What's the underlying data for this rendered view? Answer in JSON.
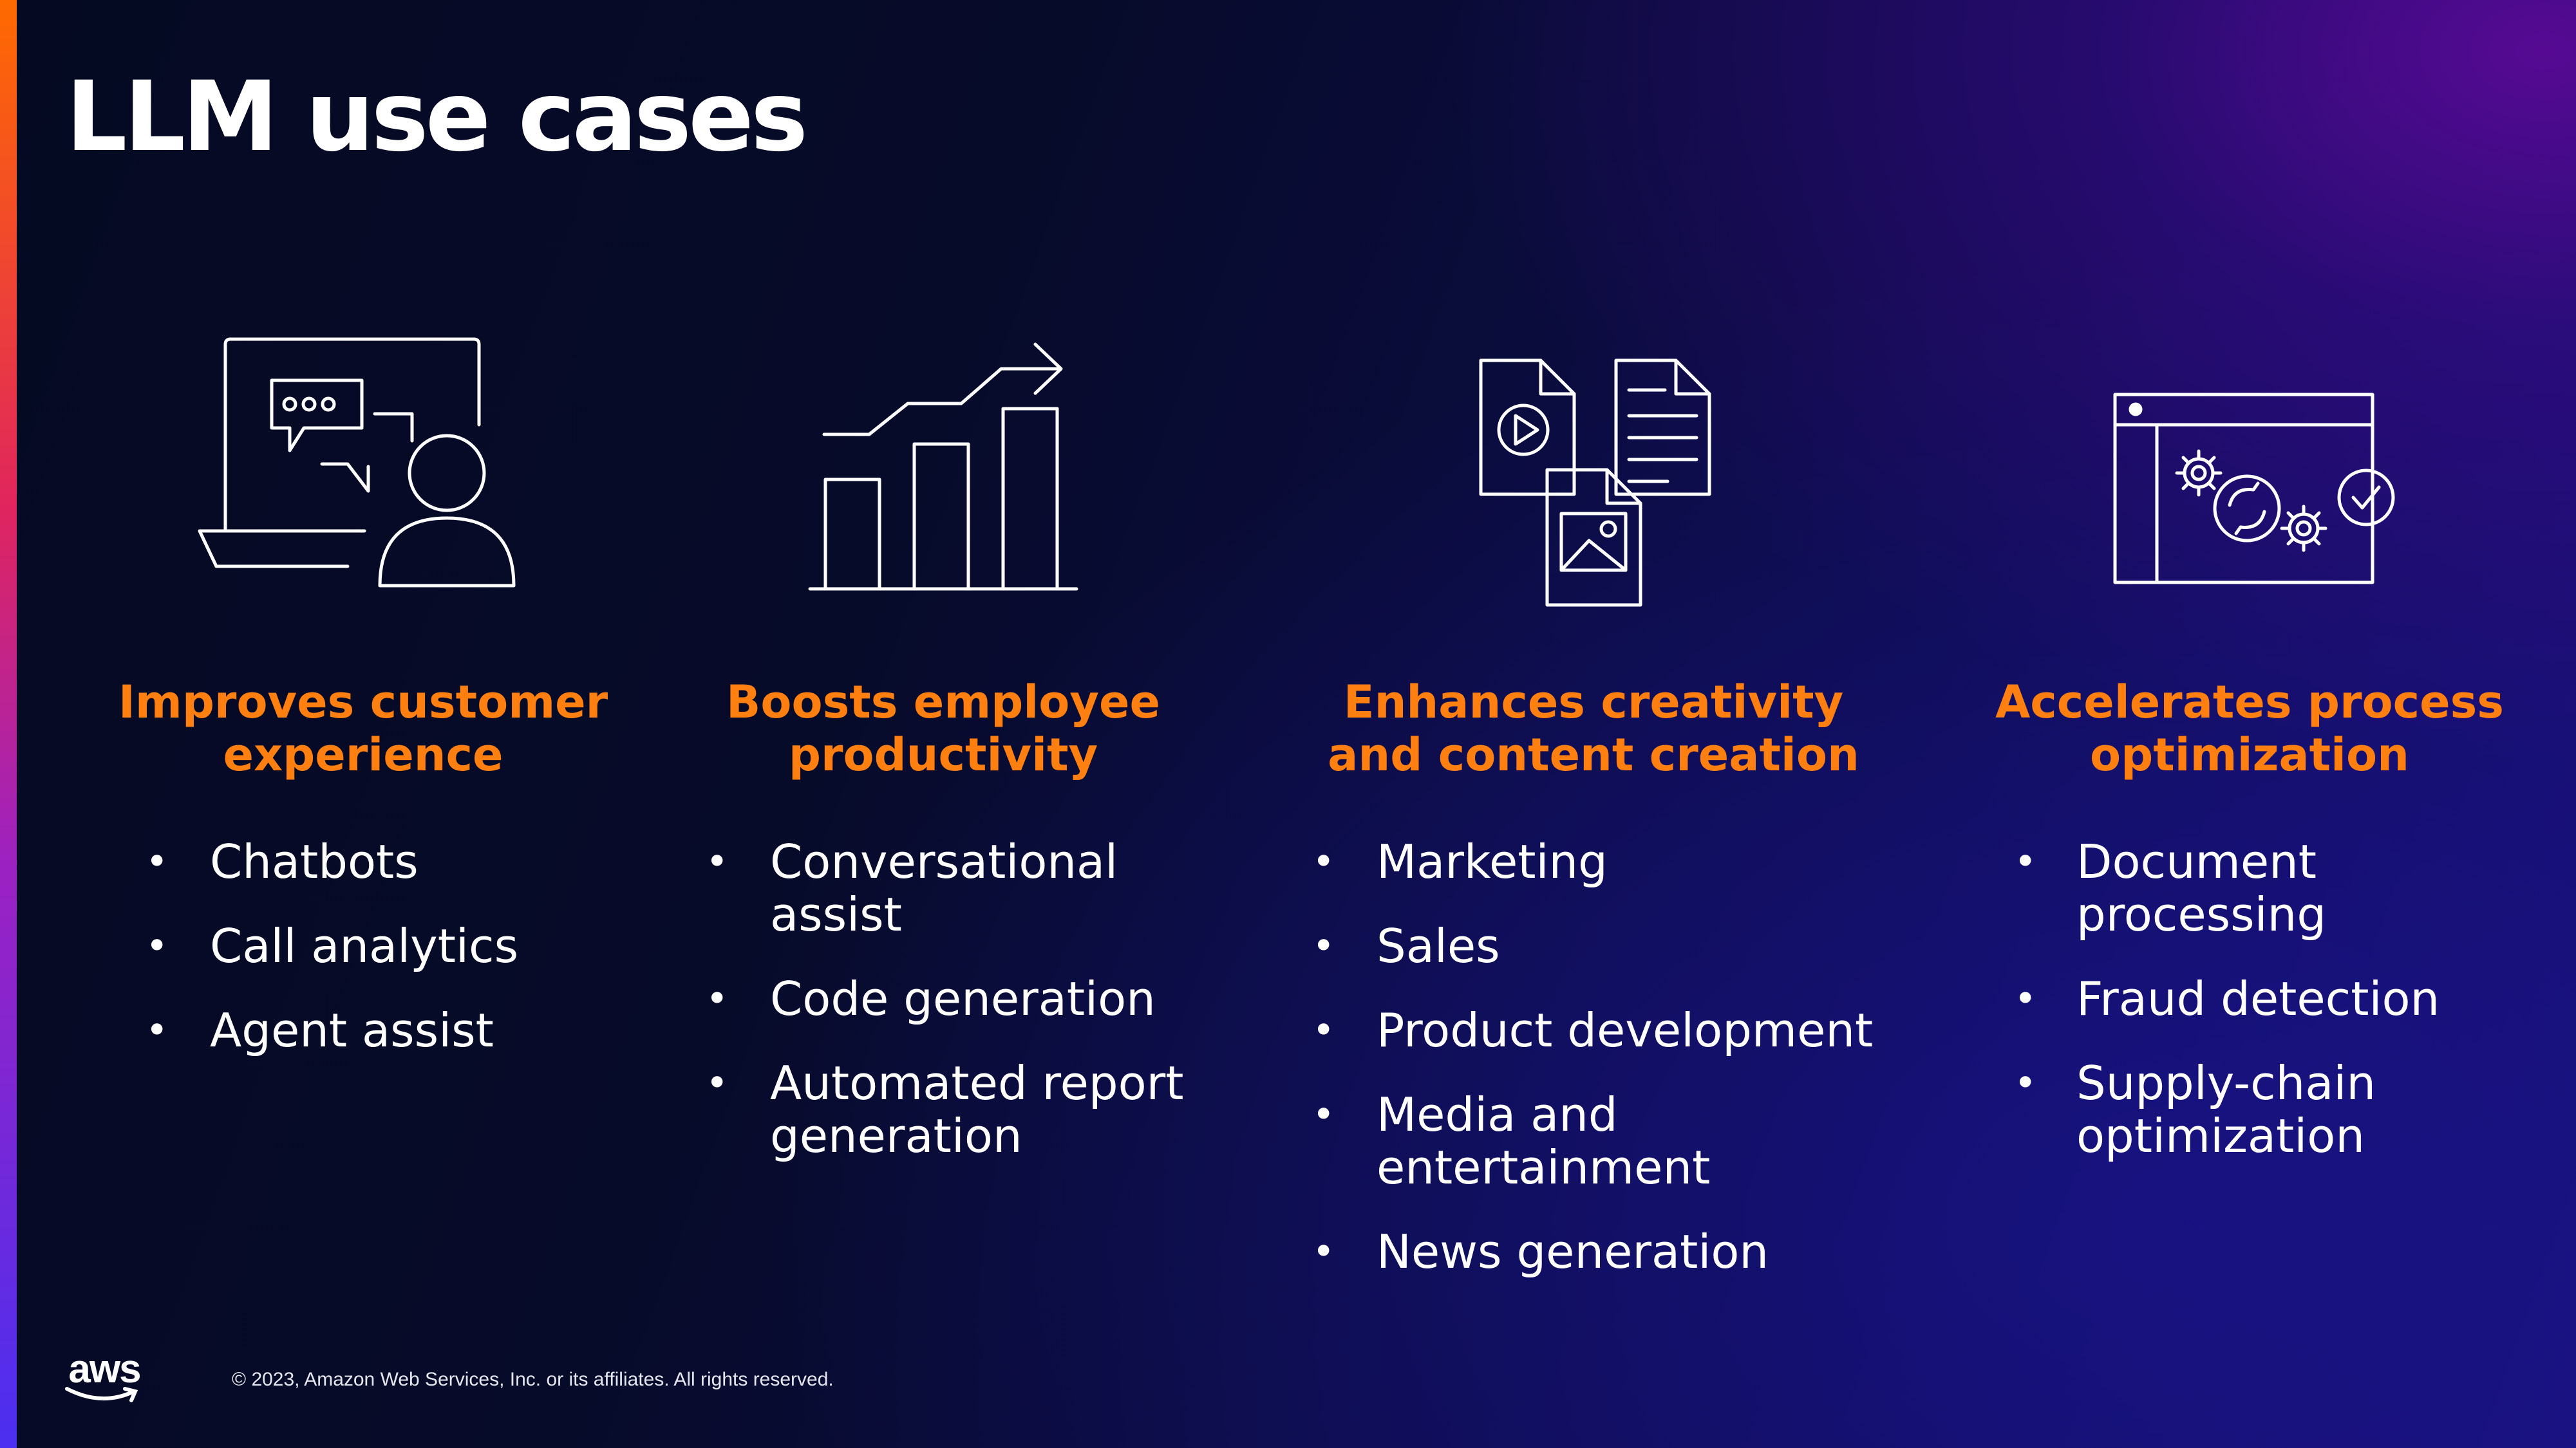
{
  "slide": {
    "title": "LLM use cases",
    "columns": [
      {
        "icon": "customer-support-chat-icon",
        "heading_lines": [
          "Improves customer",
          "experience"
        ],
        "bullets": [
          {
            "lines": [
              "Chatbots"
            ]
          },
          {
            "lines": [
              "Call analytics"
            ]
          },
          {
            "lines": [
              "Agent assist"
            ]
          }
        ]
      },
      {
        "icon": "growth-bar-chart-icon",
        "heading_lines": [
          "Boosts employee",
          "productivity"
        ],
        "bullets": [
          {
            "lines": [
              "Conversational",
              "assist"
            ]
          },
          {
            "lines": [
              "Code generation"
            ]
          },
          {
            "lines": [
              "Automated report",
              "generation"
            ]
          }
        ]
      },
      {
        "icon": "media-documents-icon",
        "heading_lines": [
          "Enhances creativity",
          "and content creation"
        ],
        "bullets": [
          {
            "lines": [
              "Marketing"
            ]
          },
          {
            "lines": [
              "Sales"
            ]
          },
          {
            "lines": [
              "Product development"
            ]
          },
          {
            "lines": [
              "Media and",
              "entertainment"
            ]
          },
          {
            "lines": [
              "News generation"
            ]
          }
        ]
      },
      {
        "icon": "process-gears-window-icon",
        "heading_lines": [
          "Accelerates process",
          "optimization"
        ],
        "bullets": [
          {
            "lines": [
              "Document",
              "processing"
            ]
          },
          {
            "lines": [
              "Fraud detection"
            ]
          },
          {
            "lines": [
              "Supply-chain",
              "optimization"
            ]
          }
        ]
      }
    ],
    "bullet_symbol": "•"
  },
  "footer": {
    "logo_text": "aws",
    "copyright": "© 2023, Amazon Web Services, Inc. or its affiliates. All rights reserved."
  },
  "colors": {
    "heading": "#ff7f11",
    "text": "#ffffff",
    "background_dark": "#070b2a",
    "background_accent": "#4a0d8f"
  }
}
